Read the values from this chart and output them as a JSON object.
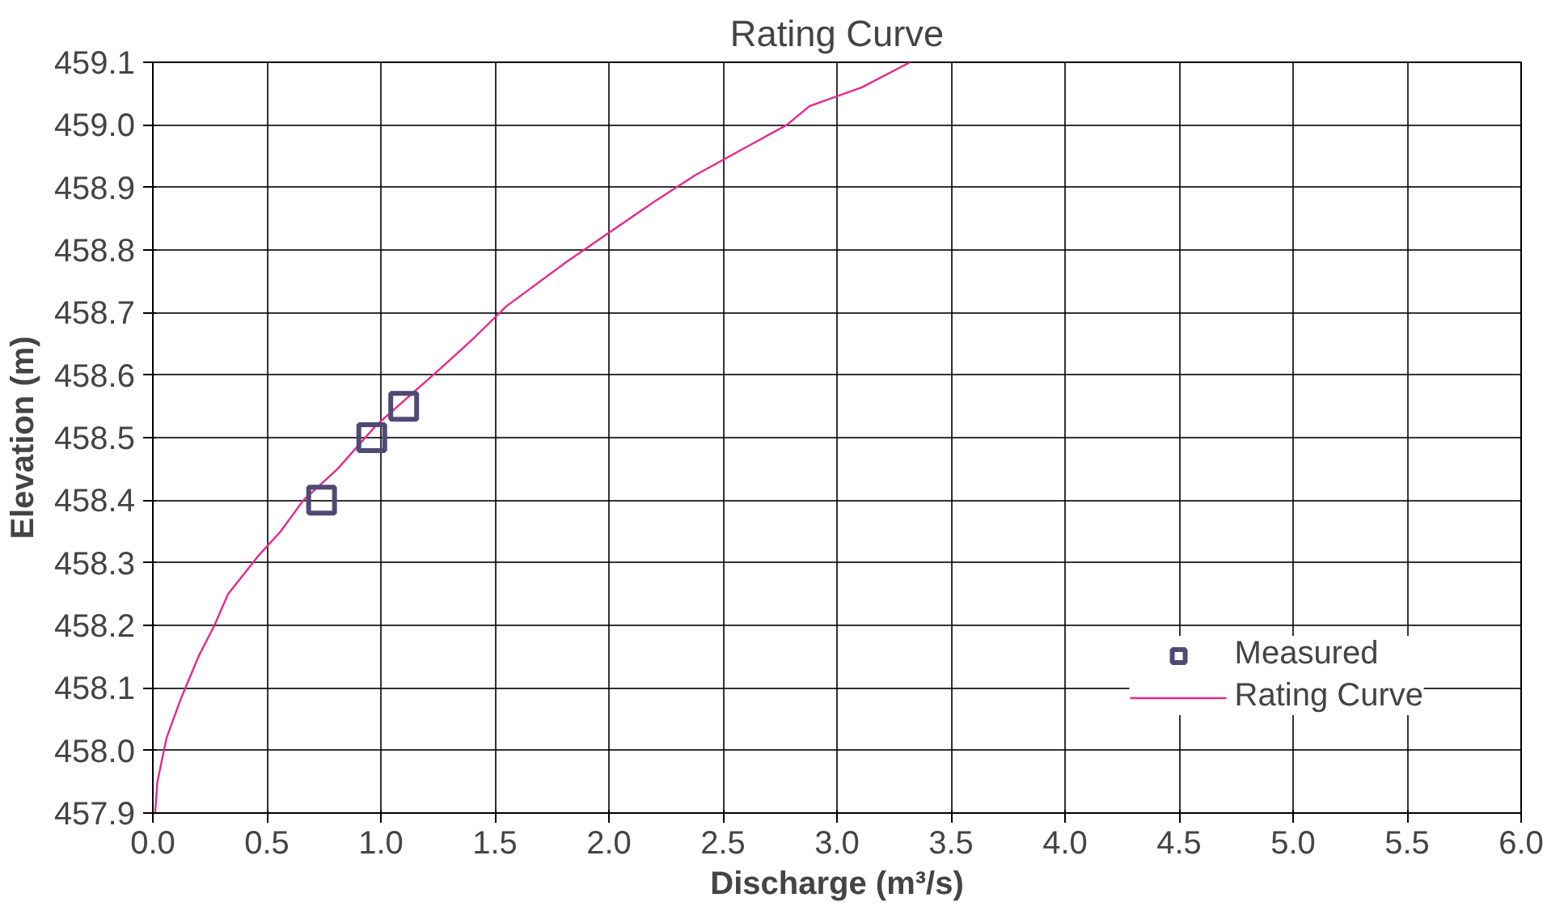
{
  "chart_data": {
    "type": "scatter",
    "title": "Rating Curve",
    "xlabel": "Discharge (m³/s)",
    "ylabel": "Elevation (m)",
    "xlim": [
      0,
      6
    ],
    "xticks": [
      {
        "value": 0,
        "label": "0.0"
      },
      {
        "value": 0.5,
        "label": "0.5"
      },
      {
        "value": 1,
        "label": "1.0"
      },
      {
        "value": 1.5,
        "label": "1.5"
      },
      {
        "value": 2,
        "label": "2.0"
      },
      {
        "value": 2.5,
        "label": "2.5"
      },
      {
        "value": 3,
        "label": "3.0"
      },
      {
        "value": 3.5,
        "label": "3.5"
      },
      {
        "value": 4,
        "label": "4.0"
      },
      {
        "value": 4.5,
        "label": "4.5"
      },
      {
        "value": 5,
        "label": "5.0"
      },
      {
        "value": 5.5,
        "label": "5.5"
      },
      {
        "value": 6,
        "label": "6.0"
      }
    ],
    "ylim": [
      457.9,
      459.1
    ],
    "yticks": [
      457.9,
      {
        "value": 458,
        "label": "458.0"
      },
      458.1,
      458.2,
      458.3,
      458.4,
      458.5,
      458.6,
      458.7,
      458.8,
      458.9,
      {
        "value": 459,
        "label": "459.0"
      },
      459.1
    ],
    "grid": true,
    "legend": "bottom right",
    "series": [
      {
        "name": "Measured",
        "marker": "square",
        "color": "#4f4a72",
        "x": [
          0.74,
          0.96,
          1.1
        ],
        "values": [
          458.4,
          458.5,
          458.55
        ]
      },
      {
        "name": "Rating Curve",
        "type": "line",
        "line_style": "solid",
        "color": "#e8288c",
        "x": [
          0.01,
          0.02,
          0.06,
          0.12,
          0.2,
          0.27,
          0.33,
          0.46,
          0.56,
          0.66,
          0.81,
          0.98,
          1.26,
          1.41,
          1.55,
          1.81,
          2.01,
          2.21,
          2.38,
          2.58,
          2.78,
          2.88,
          3.11,
          3.32
        ],
        "values": [
          457.9,
          457.95,
          458.02,
          458.08,
          458.15,
          458.2,
          458.25,
          458.31,
          458.35,
          458.4,
          458.45,
          458.52,
          458.61,
          458.66,
          458.71,
          458.78,
          458.83,
          458.88,
          458.92,
          458.96,
          459.0,
          459.03,
          459.06,
          459.1
        ]
      }
    ]
  }
}
